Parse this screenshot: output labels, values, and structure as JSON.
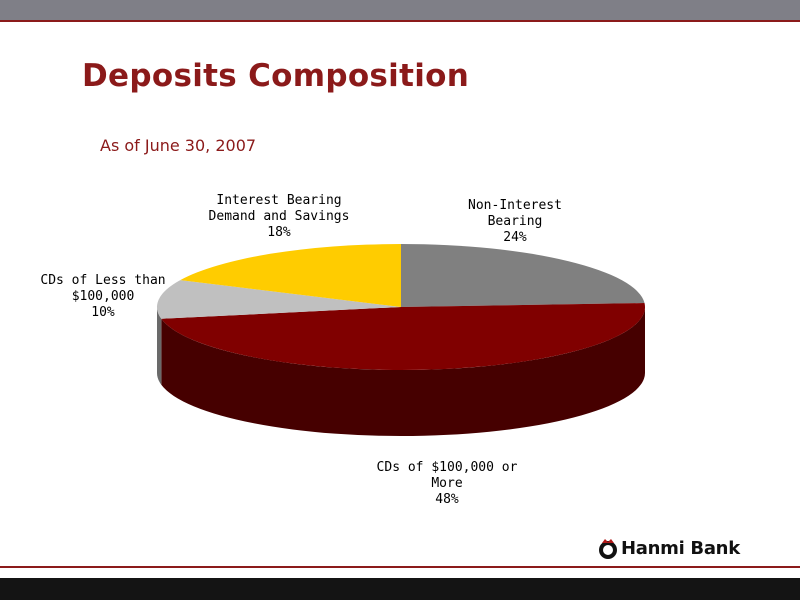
{
  "page": {
    "title": "Deposits Composition",
    "subtitle": "As of June 30, 2007",
    "logo_text": "Hanmi Bank"
  },
  "chart_data": {
    "type": "pie",
    "style": "3d",
    "title": "",
    "slices": [
      {
        "label_lines": [
          "Non-Interest",
          "Bearing"
        ],
        "value": 24,
        "value_label": "24%",
        "color": "#808080"
      },
      {
        "label_lines": [
          "CDs of $100,000 or",
          "More"
        ],
        "value": 48,
        "value_label": "48%",
        "color": "#800000"
      },
      {
        "label_lines": [
          "CDs of Less than",
          "$100,000"
        ],
        "value": 10,
        "value_label": "10%",
        "color": "#c0c0c0"
      },
      {
        "label_lines": [
          "Interest Bearing",
          "Demand and Savings"
        ],
        "value": 18,
        "value_label": "18%",
        "color": "#ffcc00"
      }
    ]
  }
}
